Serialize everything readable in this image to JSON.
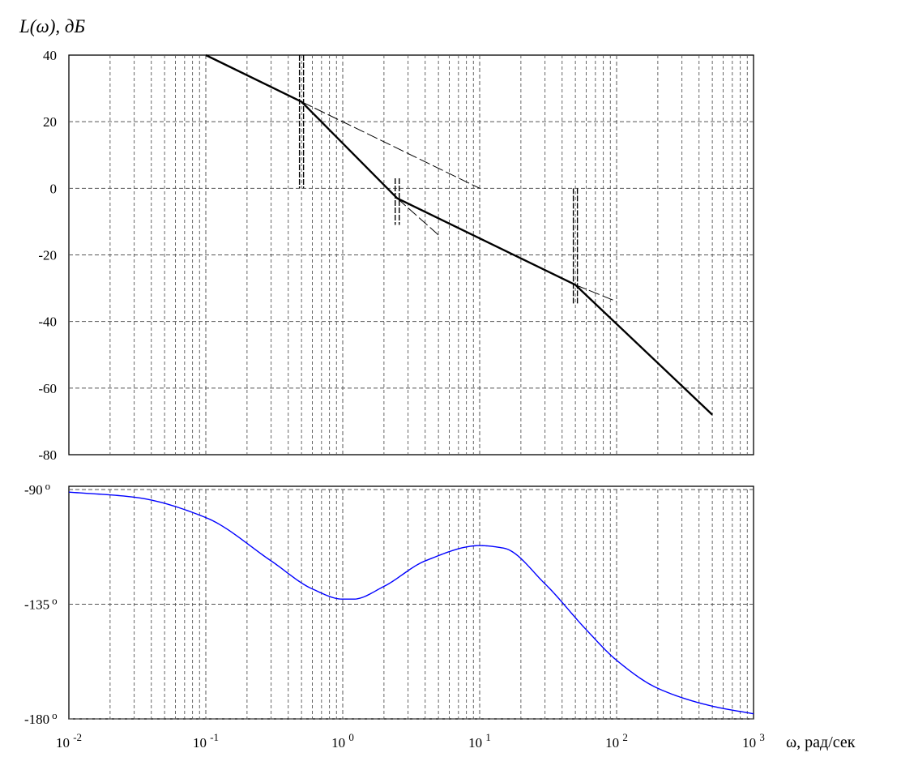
{
  "chart_data": [
    {
      "type": "line",
      "title": "",
      "ylabel": "L(ω), дБ",
      "xscale": "log",
      "xlim": [
        0.1,
        1000
      ],
      "ylim": [
        -80,
        40
      ],
      "yticks": [
        "40",
        "20",
        "0",
        "-20",
        "-40",
        "-60",
        "-80"
      ],
      "grid": true,
      "series": [
        {
          "style": "solid-thick",
          "x": [
            0.1,
            0.5,
            2.5,
            50,
            500
          ],
          "y": [
            40,
            26,
            -3,
            -29,
            -68
          ]
        },
        {
          "style": "thin-dashed-asymptote",
          "x": [
            0.5,
            10
          ],
          "y": [
            26,
            0
          ]
        },
        {
          "style": "thin-dashed-asymptote",
          "x": [
            2.5,
            5
          ],
          "y": [
            -3,
            -14
          ]
        },
        {
          "style": "thin-dashed-asymptote",
          "x": [
            50,
            100
          ],
          "y": [
            -29,
            -34
          ]
        }
      ],
      "markers": [
        {
          "x": 0.5,
          "y_range": [
            0,
            40
          ]
        },
        {
          "x": 2.5,
          "y_range": [
            -11,
            3
          ]
        },
        {
          "x": 50,
          "y_range": [
            -35,
            0
          ]
        }
      ]
    },
    {
      "type": "line",
      "title": "",
      "xlabel": "ω, рад/сек",
      "xscale": "log",
      "xlim": [
        0.01,
        1000
      ],
      "ylim": [
        -180,
        -90
      ],
      "yticks": [
        "-90",
        "-135",
        "-180"
      ],
      "degree_symbol": "o",
      "xticks": [
        {
          "base": "10",
          "exp": "-2"
        },
        {
          "base": "10",
          "exp": "-1"
        },
        {
          "base": "10",
          "exp": "0"
        },
        {
          "base": "10",
          "exp": "1"
        },
        {
          "base": "10",
          "exp": "2"
        },
        {
          "base": "10",
          "exp": "3"
        }
      ],
      "grid": true,
      "series": [
        {
          "color": "#0000ff",
          "x": [
            0.01,
            0.03,
            0.1,
            0.3,
            0.6,
            1.0,
            1.2,
            2.0,
            4.0,
            10,
            15,
            30,
            60,
            100,
            200,
            500,
            1000
          ],
          "y": [
            -91,
            -93,
            -101,
            -118,
            -129,
            -133,
            -133,
            -128,
            -118,
            -112,
            -113,
            -127,
            -145,
            -157,
            -168,
            -175,
            -178
          ]
        }
      ]
    }
  ]
}
